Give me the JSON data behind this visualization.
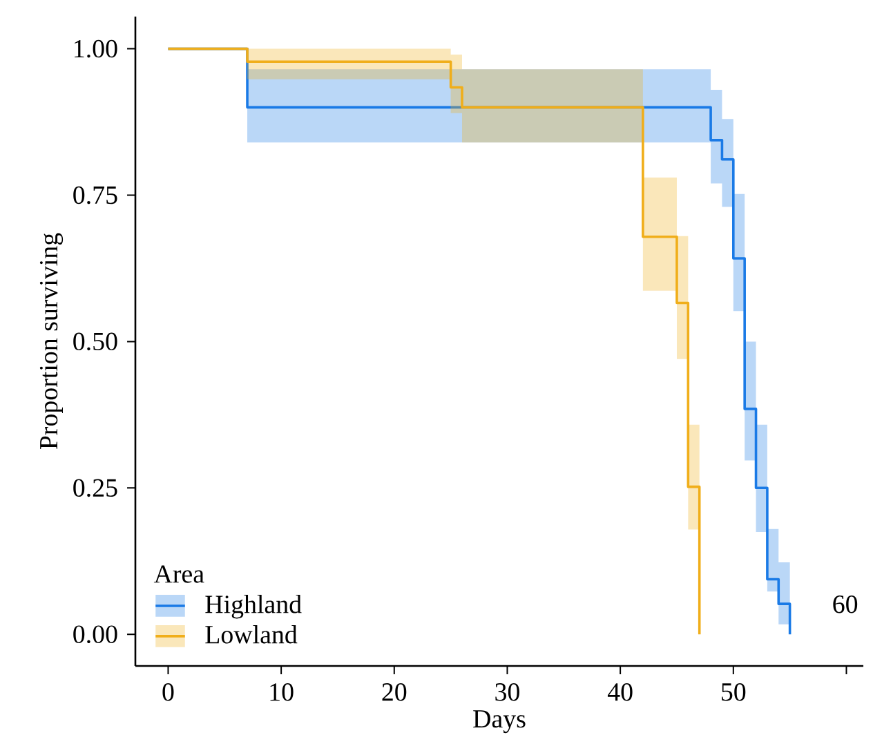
{
  "chart_data": {
    "type": "step",
    "xlabel": "Days",
    "ylabel": "Proportion surviving",
    "legend_title": "Area",
    "legend": "bottom left",
    "grid": false,
    "xlim": [
      -2.9,
      61.5
    ],
    "ylim": [
      -0.054,
      1.055
    ],
    "xticks": [
      0,
      10,
      20,
      30,
      40,
      50,
      {
        "value": 60,
        "label": null
      }
    ],
    "yticks": [
      {
        "value": 0,
        "label": "0.00"
      },
      {
        "value": 0.25,
        "label": "0.25"
      },
      {
        "value": 0.5,
        "label": "0.50"
      },
      {
        "value": 0.75,
        "label": "0.75"
      },
      {
        "value": 1,
        "label": "1.00"
      }
    ],
    "series": [
      {
        "name": "Highland",
        "color": "#1a7ae6",
        "x": [
          0,
          7,
          48,
          49,
          50,
          51,
          52,
          53,
          54,
          55
        ],
        "values": [
          1,
          0.9,
          0.844,
          0.811,
          0.642,
          0.385,
          0.25,
          0.094,
          0.052,
          0
        ],
        "lower": [
          1,
          0.84,
          0.77,
          0.73,
          0.552,
          0.297,
          0.175,
          0.073,
          0.017,
          0
        ],
        "upper": [
          1,
          0.965,
          0.93,
          0.88,
          0.752,
          0.5,
          0.358,
          0.18,
          0.123,
          0
        ]
      },
      {
        "name": "Lowland",
        "color": "#f0ae1a",
        "x": [
          0,
          7,
          25,
          26,
          42,
          45,
          46,
          47
        ],
        "values": [
          1,
          0.978,
          0.934,
          0.9,
          0.679,
          0.566,
          0.252,
          0
        ],
        "lower": [
          1,
          0.948,
          0.89,
          0.84,
          0.587,
          0.47,
          0.179,
          0
        ],
        "upper": [
          1,
          1,
          0.99,
          0.965,
          0.78,
          0.68,
          0.358,
          0
        ]
      }
    ],
    "annotations": [
      "60"
    ]
  }
}
